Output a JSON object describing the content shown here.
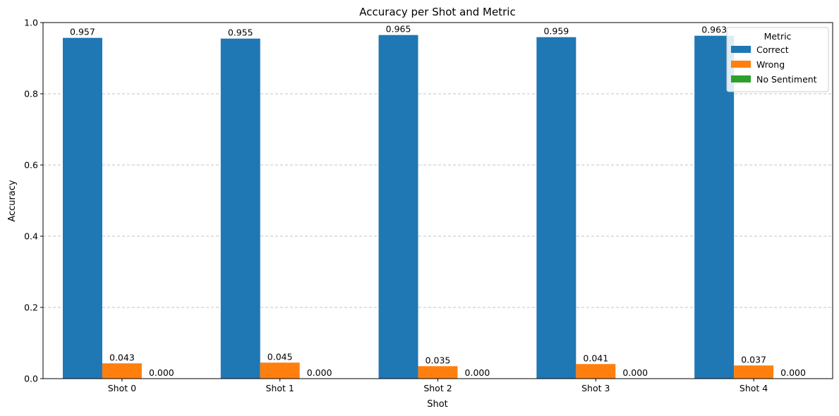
{
  "chart_data": {
    "type": "bar",
    "title": "Accuracy per Shot and Metric",
    "xlabel": "Shot",
    "ylabel": "Accuracy",
    "categories": [
      "Shot 0",
      "Shot 1",
      "Shot 2",
      "Shot 3",
      "Shot 4"
    ],
    "ylim": [
      0,
      1.0
    ],
    "yticks": [
      "0.0",
      "0.2",
      "0.4",
      "0.6",
      "0.8",
      "1.0"
    ],
    "grid": "y-dashed",
    "legend": {
      "title": "Metric",
      "placement": "top-right"
    },
    "series": [
      {
        "name": "Correct",
        "color": "#1f77b4",
        "values": [
          0.957,
          0.955,
          0.965,
          0.959,
          0.963
        ],
        "labels": [
          "0.957",
          "0.955",
          "0.965",
          "0.959",
          "0.963"
        ]
      },
      {
        "name": "Wrong",
        "color": "#ff7f0e",
        "values": [
          0.043,
          0.045,
          0.035,
          0.041,
          0.037
        ],
        "labels": [
          "0.043",
          "0.045",
          "0.035",
          "0.041",
          "0.037"
        ]
      },
      {
        "name": "No Sentiment",
        "color": "#2ca02c",
        "values": [
          0.0,
          0.0,
          0.0,
          0.0,
          0.0
        ],
        "labels": [
          "0.000",
          "0.000",
          "0.000",
          "0.000",
          "0.000"
        ]
      }
    ]
  }
}
